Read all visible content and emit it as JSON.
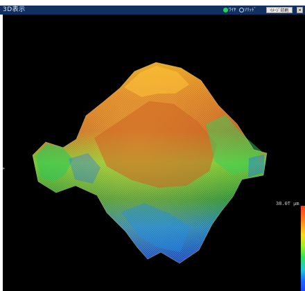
{
  "window": {
    "title": "3D表示"
  },
  "toolbar": {
    "radio_wire": "ﾜｲﾔ",
    "radio_solid": "ｿﾘｯﾄﾞ",
    "button_label": "ｲﾒｰｼﾞ印刷",
    "close_label": "✕"
  },
  "scale": {
    "max_label": "38.0T μm"
  },
  "colors": {
    "accent": "#12305f"
  }
}
